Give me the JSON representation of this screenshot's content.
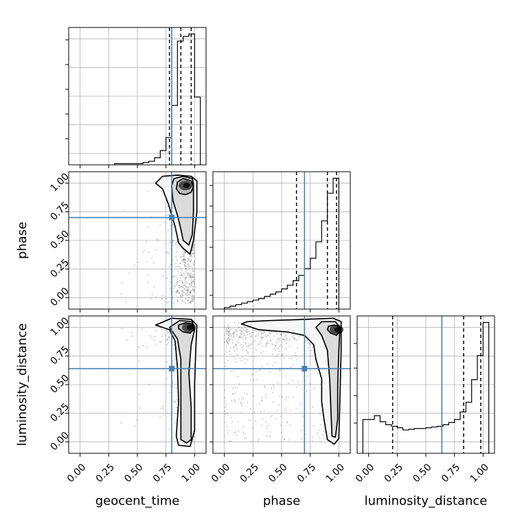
{
  "chart_data": {
    "type": "corner",
    "parameters": [
      "geocent_time",
      "phase",
      "luminosity_distance"
    ],
    "axis_labels": {
      "geocent_time": "geocent_time",
      "phase": "phase",
      "luminosity_distance": "luminosity_distance"
    },
    "range": [
      -0.1,
      1.1
    ],
    "ticks": [
      0.0,
      0.25,
      0.5,
      0.75,
      1.0
    ],
    "tick_labels": [
      "0.00",
      "0.25",
      "0.50",
      "0.75",
      "1.00"
    ],
    "truths": {
      "geocent_time": 0.8,
      "phase": 0.7,
      "luminosity_distance": 0.64
    },
    "truth_color": "#4682b4",
    "quantiles": {
      "geocent_time": [
        0.78,
        0.88,
        0.97
      ],
      "phase": [
        0.63,
        0.9,
        0.98
      ],
      "luminosity_distance": [
        0.21,
        0.83,
        0.98
      ]
    },
    "grid": true,
    "histograms": {
      "geocent_time": {
        "edges": [
          0.3,
          0.35,
          0.4,
          0.45,
          0.5,
          0.55,
          0.6,
          0.65,
          0.7,
          0.75,
          0.8,
          0.85,
          0.9,
          0.95,
          1.0,
          1.05
        ],
        "counts": [
          0.01,
          0.01,
          0.01,
          0.01,
          0.01,
          0.02,
          0.03,
          0.06,
          0.12,
          0.23,
          0.5,
          1.04,
          1.08,
          1.1,
          0.57
        ]
      },
      "phase": {
        "edges": [
          0.0,
          0.05,
          0.1,
          0.15,
          0.2,
          0.25,
          0.3,
          0.35,
          0.4,
          0.45,
          0.5,
          0.55,
          0.6,
          0.65,
          0.7,
          0.75,
          0.8,
          0.85,
          0.9,
          0.95,
          1.0
        ],
        "counts": [
          0.02,
          0.04,
          0.06,
          0.08,
          0.1,
          0.12,
          0.14,
          0.17,
          0.2,
          0.23,
          0.27,
          0.32,
          0.38,
          0.45,
          0.54,
          0.68,
          0.9,
          1.18,
          1.55,
          1.75
        ]
      },
      "luminosity_distance": {
        "edges": [
          -0.05,
          0.0,
          0.05,
          0.1,
          0.15,
          0.2,
          0.25,
          0.3,
          0.35,
          0.4,
          0.45,
          0.5,
          0.55,
          0.6,
          0.65,
          0.7,
          0.75,
          0.8,
          0.85,
          0.9,
          0.95,
          1.0,
          1.05
        ],
        "counts": [
          0.45,
          0.45,
          0.5,
          0.42,
          0.38,
          0.36,
          0.34,
          0.31,
          0.32,
          0.33,
          0.33,
          0.34,
          0.35,
          0.36,
          0.38,
          0.41,
          0.45,
          0.55,
          0.68,
          0.98,
          1.3,
          1.74
        ]
      }
    },
    "joint": {
      "geocent_time_vs_phase": {
        "x": "geocent_time",
        "y": "phase",
        "peak": [
          0.92,
          0.98
        ],
        "contours": [
          [
            [
              0.84,
              0.95
            ],
            [
              0.87,
              0.91
            ],
            [
              0.92,
              0.9
            ],
            [
              0.97,
              0.92
            ],
            [
              0.99,
              0.97
            ],
            [
              0.97,
              1.02
            ],
            [
              0.9,
              1.04
            ],
            [
              0.85,
              1.01
            ],
            [
              0.84,
              0.95
            ]
          ],
          [
            [
              0.8,
              0.98
            ],
            [
              0.81,
              0.85
            ],
            [
              0.85,
              0.72
            ],
            [
              0.88,
              0.6
            ],
            [
              0.9,
              0.5
            ],
            [
              0.95,
              0.46
            ],
            [
              0.98,
              0.55
            ],
            [
              0.99,
              0.75
            ],
            [
              0.99,
              1.0
            ],
            [
              0.98,
              1.04
            ],
            [
              0.9,
              1.06
            ],
            [
              0.82,
              1.04
            ],
            [
              0.8,
              0.98
            ]
          ],
          [
            [
              0.66,
              1.0
            ],
            [
              0.72,
              0.95
            ],
            [
              0.77,
              0.82
            ],
            [
              0.83,
              0.62
            ],
            [
              0.86,
              0.48
            ],
            [
              0.9,
              0.43
            ],
            [
              0.96,
              0.38
            ],
            [
              0.99,
              0.5
            ],
            [
              1.02,
              0.75
            ],
            [
              1.02,
              1.02
            ],
            [
              0.97,
              1.06
            ],
            [
              0.85,
              1.07
            ],
            [
              0.72,
              1.06
            ],
            [
              0.66,
              1.0
            ]
          ]
        ]
      },
      "geocent_time_vs_luminosity_distance": {
        "x": "geocent_time",
        "y": "luminosity_distance",
        "peak": [
          0.95,
          1.0
        ],
        "contours": [
          [
            [
              0.86,
              0.99
            ],
            [
              0.9,
              0.96
            ],
            [
              0.96,
              0.95
            ],
            [
              0.99,
              0.98
            ],
            [
              0.98,
              1.03
            ],
            [
              0.92,
              1.04
            ],
            [
              0.86,
              1.02
            ],
            [
              0.86,
              0.99
            ]
          ],
          [
            [
              0.78,
              1.0
            ],
            [
              0.85,
              0.9
            ],
            [
              0.88,
              0.72
            ],
            [
              0.88,
              0.45
            ],
            [
              0.88,
              0.2
            ],
            [
              0.88,
              0.02
            ],
            [
              0.93,
              -0.01
            ],
            [
              0.97,
              0.02
            ],
            [
              0.97,
              0.3
            ],
            [
              0.95,
              0.6
            ],
            [
              0.97,
              0.85
            ],
            [
              1.0,
              0.98
            ],
            [
              0.98,
              1.05
            ],
            [
              0.87,
              1.06
            ],
            [
              0.78,
              1.0
            ]
          ],
          [
            [
              0.66,
              1.02
            ],
            [
              0.78,
              0.98
            ],
            [
              0.83,
              0.88
            ],
            [
              0.85,
              0.65
            ],
            [
              0.86,
              0.35
            ],
            [
              0.84,
              0.05
            ],
            [
              0.86,
              -0.03
            ],
            [
              0.96,
              -0.04
            ],
            [
              1.0,
              0.1
            ],
            [
              1.0,
              0.5
            ],
            [
              1.01,
              0.8
            ],
            [
              1.02,
              1.02
            ],
            [
              0.97,
              1.07
            ],
            [
              0.8,
              1.08
            ],
            [
              0.66,
              1.02
            ]
          ]
        ]
      },
      "phase_vs_luminosity_distance": {
        "x": "phase",
        "y": "luminosity_distance",
        "peak": [
          0.98,
          0.98
        ],
        "contours": [
          [
            [
              0.9,
              0.98
            ],
            [
              0.93,
              0.95
            ],
            [
              0.98,
              0.93
            ],
            [
              1.0,
              0.96
            ],
            [
              1.0,
              1.01
            ],
            [
              0.96,
              1.02
            ],
            [
              0.91,
              1.01
            ],
            [
              0.9,
              0.98
            ]
          ],
          [
            [
              0.8,
              1.0
            ],
            [
              0.85,
              0.93
            ],
            [
              0.9,
              0.8
            ],
            [
              0.92,
              0.55
            ],
            [
              0.93,
              0.3
            ],
            [
              0.94,
              0.05
            ],
            [
              0.97,
              0.04
            ],
            [
              0.99,
              0.2
            ],
            [
              0.99,
              0.5
            ],
            [
              1.0,
              0.8
            ],
            [
              1.01,
              1.0
            ],
            [
              0.97,
              1.05
            ],
            [
              0.85,
              1.05
            ],
            [
              0.8,
              1.0
            ]
          ],
          [
            [
              0.15,
              1.03
            ],
            [
              0.3,
              0.98
            ],
            [
              0.55,
              0.96
            ],
            [
              0.7,
              0.93
            ],
            [
              0.78,
              0.85
            ],
            [
              0.8,
              0.72
            ],
            [
              0.85,
              0.55
            ],
            [
              0.85,
              0.35
            ],
            [
              0.87,
              0.2
            ],
            [
              0.9,
              0.02
            ],
            [
              0.96,
              -0.02
            ],
            [
              1.0,
              0.03
            ],
            [
              1.01,
              0.4
            ],
            [
              1.02,
              0.8
            ],
            [
              1.02,
              1.05
            ],
            [
              0.95,
              1.08
            ],
            [
              0.7,
              1.07
            ],
            [
              0.4,
              1.06
            ],
            [
              0.2,
              1.05
            ],
            [
              0.15,
              1.03
            ]
          ]
        ]
      }
    }
  }
}
